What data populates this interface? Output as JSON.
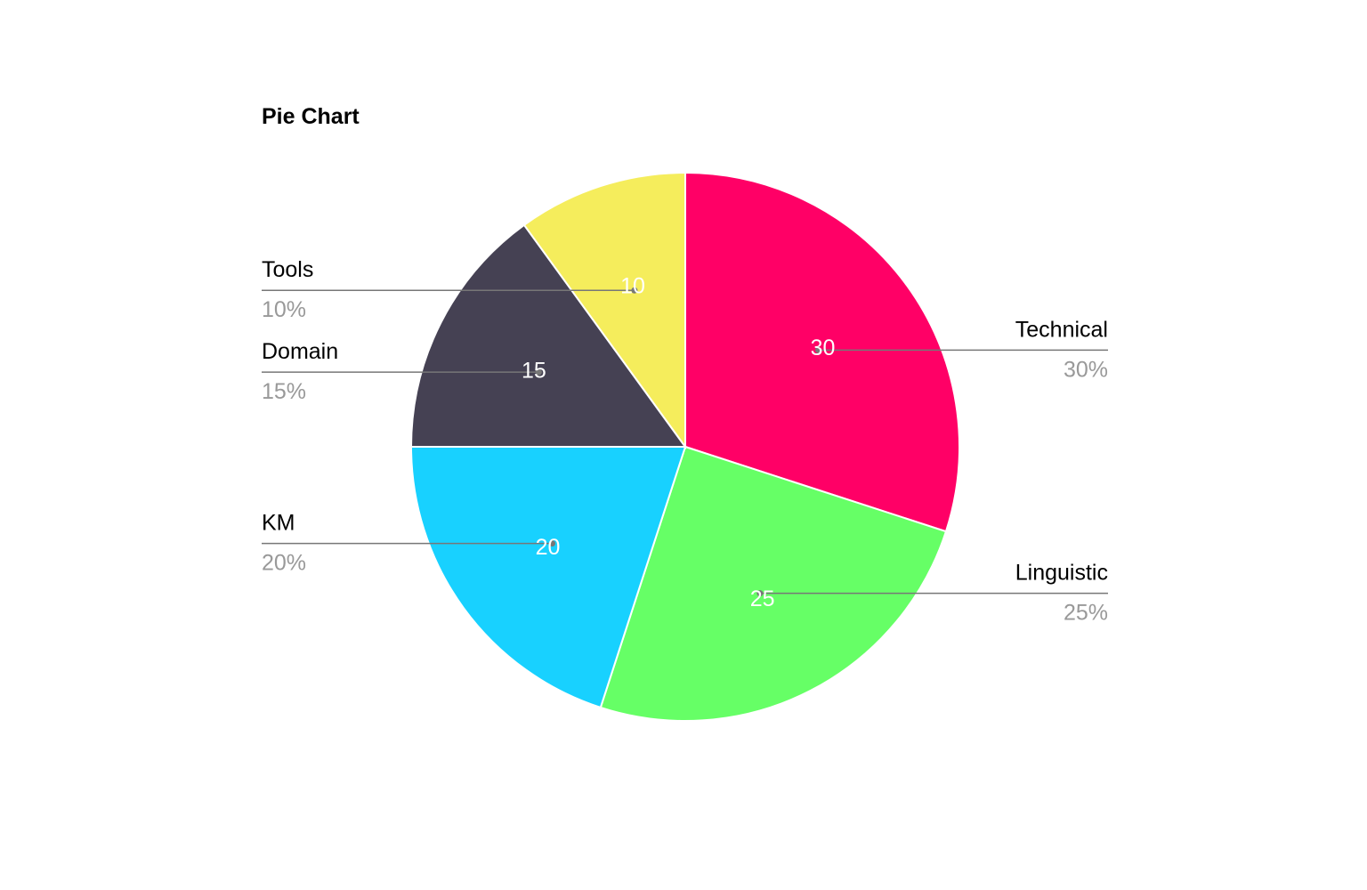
{
  "chart_data": {
    "type": "pie",
    "title": "Pie Chart",
    "slices": [
      {
        "label": "Technical",
        "value": 30,
        "percent": "30%",
        "color": "#ff0066"
      },
      {
        "label": "Linguistic",
        "value": 25,
        "percent": "25%",
        "color": "#66ff66"
      },
      {
        "label": "KM",
        "value": 20,
        "percent": "20%",
        "color": "#18d1ff"
      },
      {
        "label": "Domain",
        "value": 15,
        "percent": "15%",
        "color": "#454153"
      },
      {
        "label": "Tools",
        "value": 10,
        "percent": "10%",
        "color": "#f5ed5c"
      }
    ],
    "value_label_color": "#ffffff",
    "category_label_color": "#000000",
    "percent_label_color": "#999999",
    "leader_line_color": "#777777"
  }
}
